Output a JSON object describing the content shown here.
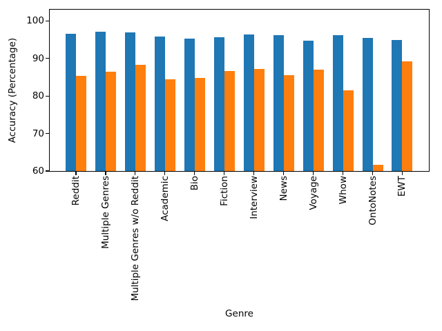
{
  "chart_data": {
    "type": "bar",
    "title": "",
    "xlabel": "Genre",
    "ylabel": "Accuracy (Percentage)",
    "categories": [
      "Reddit",
      "Multiple Genres",
      "Multiple Genres w/o Reddit",
      "Academic",
      "Bio",
      "Fiction",
      "Interview",
      "News",
      "Voyage",
      "Whow",
      "OntoNotes",
      "EWT"
    ],
    "series": [
      {
        "name": "blue",
        "color": "#1f77b4",
        "values": [
          96.5,
          97.2,
          96.9,
          95.8,
          95.2,
          95.6,
          96.4,
          96.2,
          94.8,
          96.2,
          95.5,
          95.0
        ]
      },
      {
        "name": "orange",
        "color": "#ff7f0e",
        "values": [
          85.4,
          86.5,
          88.3,
          84.4,
          84.8,
          86.6,
          87.2,
          85.6,
          87.1,
          81.5,
          61.6,
          89.3
        ]
      }
    ],
    "ylim": [
      60,
      103
    ],
    "yticks": [
      60,
      70,
      80,
      90,
      100
    ],
    "x_tick_rotation_deg": 90,
    "grid": false,
    "legend": "none"
  },
  "figure": {
    "background": "#ffffff",
    "axis_color": "#000000"
  }
}
